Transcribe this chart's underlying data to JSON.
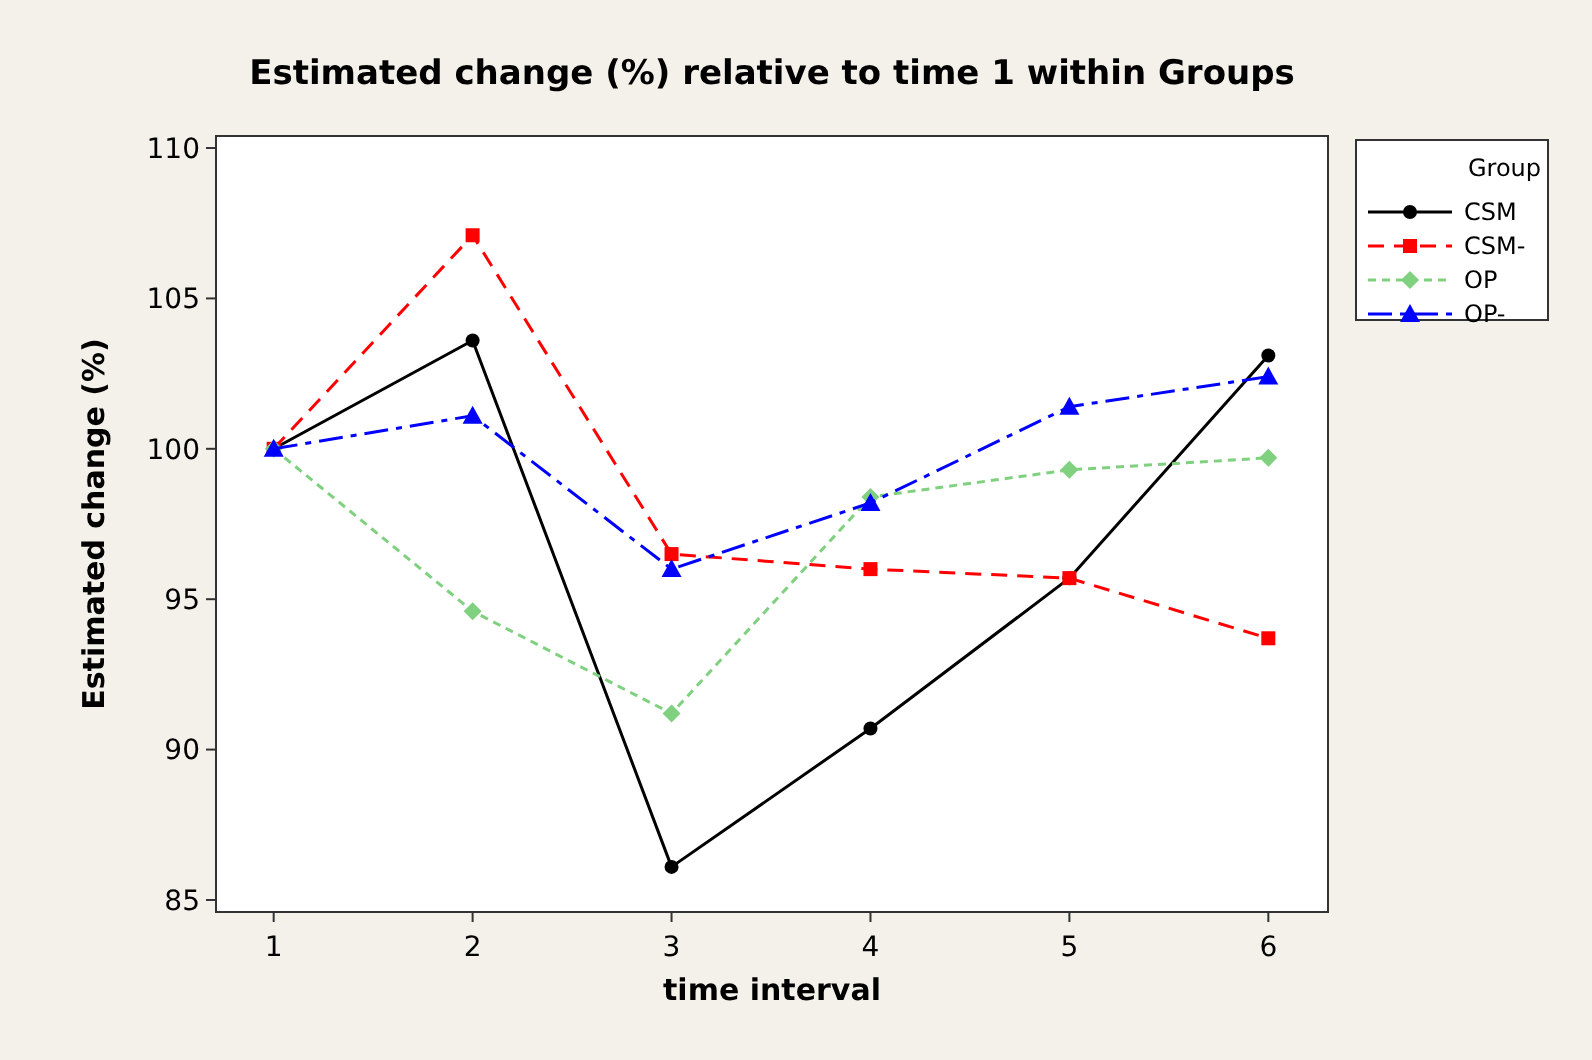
{
  "chart_data": {
    "type": "line",
    "title": "Estimated change (%) relative to time 1 within Groups",
    "xlabel": "time interval",
    "ylabel": "Estimated change (%)",
    "legend_title": "Group",
    "legend": "right",
    "grid": false,
    "x": [
      1,
      2,
      3,
      4,
      5,
      6
    ],
    "xlim": [
      0.71,
      6.3
    ],
    "xticks": [
      1,
      2,
      3,
      4,
      5,
      6
    ],
    "ylim": [
      84.6,
      110.4
    ],
    "yticks": [
      85,
      90,
      95,
      100,
      105,
      110
    ],
    "series": [
      {
        "name": "CSM",
        "color": "#000000",
        "marker": "circle",
        "line_style": "solid",
        "values": [
          100,
          103.6,
          86.1,
          90.7,
          95.7,
          103.1
        ]
      },
      {
        "name": "CSM-",
        "color": "#ff0000",
        "marker": "square",
        "line_style": "dashed",
        "values": [
          100,
          107.1,
          96.5,
          96.0,
          95.7,
          93.7
        ]
      },
      {
        "name": "OP",
        "color": "#7fd17f",
        "marker": "diamond",
        "line_style": "dotted",
        "values": [
          100,
          94.6,
          91.2,
          98.4,
          99.3,
          99.7
        ]
      },
      {
        "name": "OP-",
        "color": "#0000ff",
        "marker": "triangle",
        "line_style": "dashdot",
        "values": [
          100,
          101.1,
          96.0,
          98.2,
          101.4,
          102.4
        ]
      }
    ]
  }
}
